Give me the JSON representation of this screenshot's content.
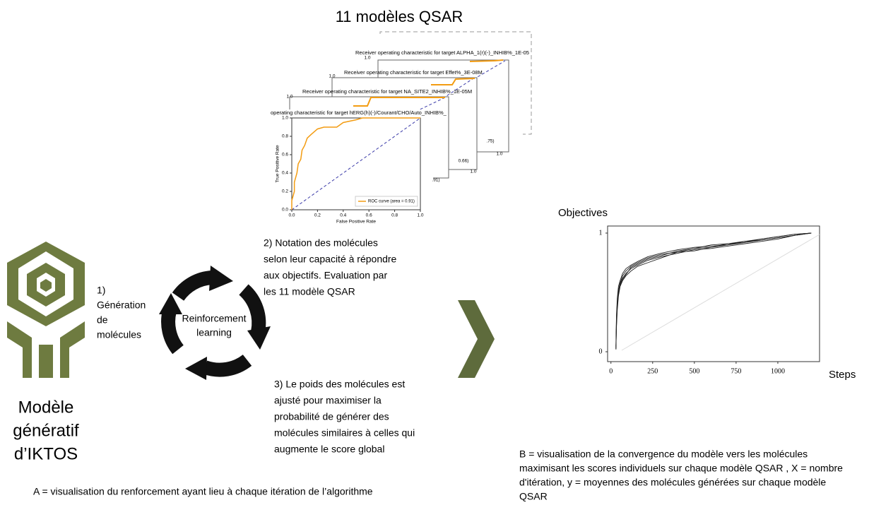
{
  "top_title": "11 modèles QSAR",
  "roc_panels": {
    "titles": [
      "Receiver operating characteristic for target ALPHA_1(r)(-)_INHIB%_1E-05",
      "Receiver operating characteristic for target Effet%_3E-08M",
      "Receiver operating characteristic for target NA_SITE2_INHIB%_1E-05M",
      "operating characteristic for target hERG(h)(-)/Courant/CHO/Auto_INHIB%_"
    ],
    "back_fragments": [
      "1.0",
      "1.0",
      "1.0",
      ".75)",
      "0.66)",
      ".91)",
      "1.0",
      "1.0"
    ],
    "x_label": "False Positive Rate",
    "y_label": "True Positive Rate",
    "legend": "ROC curve (area = 0.91)",
    "xlim": [
      0,
      1
    ],
    "ylim": [
      0,
      1
    ],
    "xticks": [
      {
        "value": 0,
        "label": "0.0"
      },
      {
        "value": 0.2,
        "label": "0.2"
      },
      {
        "value": 0.4,
        "label": "0.4"
      },
      {
        "value": 0.6,
        "label": "0.6"
      },
      {
        "value": 0.8,
        "label": "0.8"
      },
      {
        "value": 1,
        "label": "1.0"
      }
    ],
    "yticks": [
      {
        "value": 0,
        "label": "0.0"
      },
      {
        "value": 0.2,
        "label": "0.2"
      },
      {
        "value": 0.4,
        "label": "0.4"
      },
      {
        "value": 0.6,
        "label": "0.6"
      },
      {
        "value": 0.8,
        "label": "0.8"
      },
      {
        "value": 1,
        "label": "1.0"
      }
    ],
    "roc_x": [
      0,
      0,
      0.02,
      0.02,
      0.04,
      0.05,
      0.07,
      0.08,
      0.1,
      0.12,
      0.15,
      0.2,
      0.25,
      0.35,
      0.4,
      0.5,
      0.55,
      1
    ],
    "roc_y": [
      0,
      0.1,
      0.2,
      0.3,
      0.4,
      0.5,
      0.55,
      0.65,
      0.7,
      0.78,
      0.82,
      0.88,
      0.9,
      0.9,
      0.95,
      0.98,
      1,
      1
    ]
  },
  "model_name": [
    "Modèle",
    "génératif",
    "d’IKTOS"
  ],
  "step1": [
    "1)",
    "Génération",
    "de",
    "molécules"
  ],
  "cycle_label": [
    "Reinforcement",
    "learning"
  ],
  "step2": [
    "2) Notation des molécules",
    "selon leur capacité à répondre",
    "aux objectifs. Evaluation par",
    "les 11 modèle QSAR"
  ],
  "step3": [
    "3) Le poids des molécules est",
    "ajusté pour maximiser la",
    "probabilité de générer des",
    "molécules similaires à celles qui",
    "augmente le score global"
  ],
  "caption_a": "A = visualisation du renforcement ayant lieu à chaque itération de l’algorithme",
  "objectives": {
    "title": "Objectives",
    "x_label": "Steps",
    "xlim": [
      -20,
      1250
    ],
    "ylim": [
      0,
      1
    ],
    "xticks": [
      0,
      250,
      500,
      750,
      1000
    ],
    "yticks": [
      0,
      1
    ],
    "x": [
      30,
      33,
      38,
      45,
      55,
      70,
      90,
      120,
      160,
      220,
      300,
      400,
      500,
      600,
      700,
      800,
      900,
      1000,
      1100,
      1200
    ],
    "curves": [
      [
        0.02,
        0.25,
        0.4,
        0.5,
        0.57,
        0.62,
        0.66,
        0.7,
        0.73,
        0.77,
        0.8,
        0.83,
        0.86,
        0.87,
        0.89,
        0.91,
        0.93,
        0.95,
        0.98,
        1
      ],
      [
        0.05,
        0.3,
        0.45,
        0.55,
        0.6,
        0.66,
        0.7,
        0.73,
        0.76,
        0.8,
        0.83,
        0.86,
        0.88,
        0.89,
        0.9,
        0.93,
        0.95,
        0.97,
        0.99,
        1
      ],
      [
        0.03,
        0.2,
        0.35,
        0.47,
        0.55,
        0.6,
        0.64,
        0.68,
        0.72,
        0.75,
        0.79,
        0.84,
        0.85,
        0.88,
        0.9,
        0.92,
        0.94,
        0.96,
        0.98,
        1
      ],
      [
        0.04,
        0.28,
        0.42,
        0.52,
        0.58,
        0.64,
        0.68,
        0.72,
        0.75,
        0.79,
        0.82,
        0.84,
        0.87,
        0.9,
        0.91,
        0.92,
        0.95,
        0.97,
        0.99,
        1
      ],
      [
        0.02,
        0.22,
        0.38,
        0.48,
        0.56,
        0.61,
        0.65,
        0.71,
        0.74,
        0.78,
        0.81,
        0.85,
        0.87,
        0.88,
        0.91,
        0.93,
        0.94,
        0.96,
        0.98,
        1
      ]
    ]
  },
  "caption_b": [
    "B = visualisation de la convergence du modèle vers les molécules",
    "maximisant les scores individuels sur chaque modèle QSAR , X = nombre",
    "d'itération, y = moyennes des molécules générées sur chaque modèle",
    "QSAR"
  ]
}
